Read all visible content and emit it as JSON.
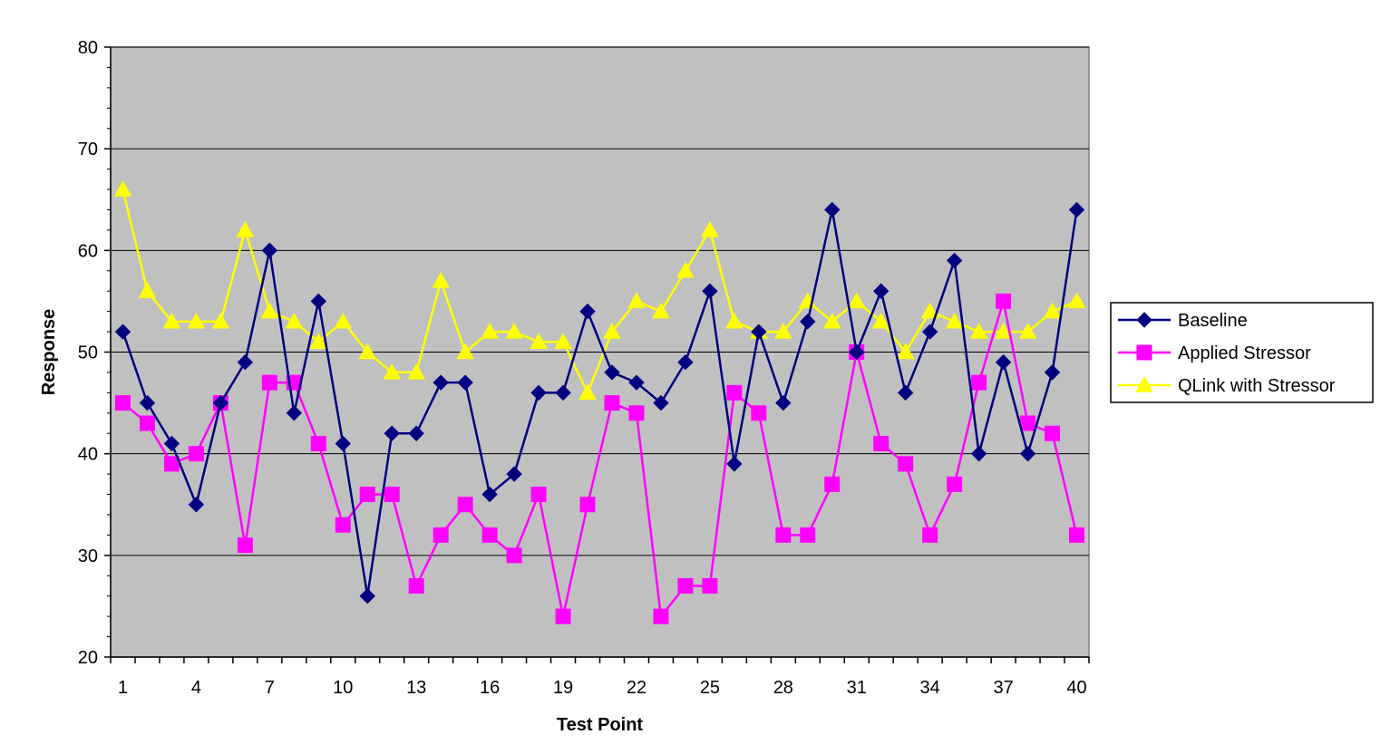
{
  "chart_data": {
    "type": "line",
    "title": "",
    "xlabel": "Test Point",
    "ylabel": "Response",
    "ylim": [
      20,
      80
    ],
    "yticks": [
      20,
      30,
      40,
      50,
      60,
      70,
      80
    ],
    "x": [
      1,
      2,
      3,
      4,
      5,
      6,
      7,
      8,
      9,
      10,
      11,
      12,
      13,
      14,
      15,
      16,
      17,
      18,
      19,
      20,
      21,
      22,
      23,
      24,
      25,
      26,
      27,
      28,
      29,
      30,
      31,
      32,
      33,
      34,
      35,
      36,
      37,
      38,
      39,
      40
    ],
    "xticks": [
      1,
      4,
      7,
      10,
      13,
      16,
      19,
      22,
      25,
      28,
      31,
      34,
      37,
      40
    ],
    "grid": "horizontal",
    "plot_background": "#c0c0c0",
    "legend_position": "right",
    "series": [
      {
        "name": "Baseline",
        "color": "#000080",
        "marker": "diamond",
        "values": [
          52,
          45,
          41,
          35,
          45,
          49,
          60,
          44,
          55,
          41,
          26,
          42,
          42,
          47,
          47,
          36,
          38,
          46,
          46,
          54,
          48,
          47,
          45,
          49,
          56,
          39,
          52,
          45,
          53,
          64,
          50,
          56,
          46,
          52,
          59,
          40,
          49,
          40,
          48,
          64
        ]
      },
      {
        "name": "Applied Stressor",
        "color": "#ff00ff",
        "marker": "square",
        "values": [
          45,
          43,
          39,
          40,
          45,
          31,
          47,
          47,
          41,
          33,
          36,
          36,
          27,
          32,
          35,
          32,
          30,
          36,
          24,
          35,
          45,
          44,
          24,
          27,
          27,
          46,
          44,
          32,
          32,
          37,
          50,
          41,
          39,
          32,
          37,
          47,
          55,
          43,
          42,
          32
        ]
      },
      {
        "name": "QLink with Stressor",
        "color": "#ffff00",
        "marker": "triangle",
        "values": [
          66,
          56,
          53,
          53,
          53,
          62,
          54,
          53,
          51,
          53,
          50,
          48,
          48,
          57,
          50,
          52,
          52,
          51,
          51,
          46,
          52,
          55,
          54,
          58,
          62,
          53,
          52,
          52,
          55,
          53,
          55,
          53,
          50,
          54,
          53,
          52,
          52,
          52,
          54,
          55
        ]
      }
    ]
  }
}
